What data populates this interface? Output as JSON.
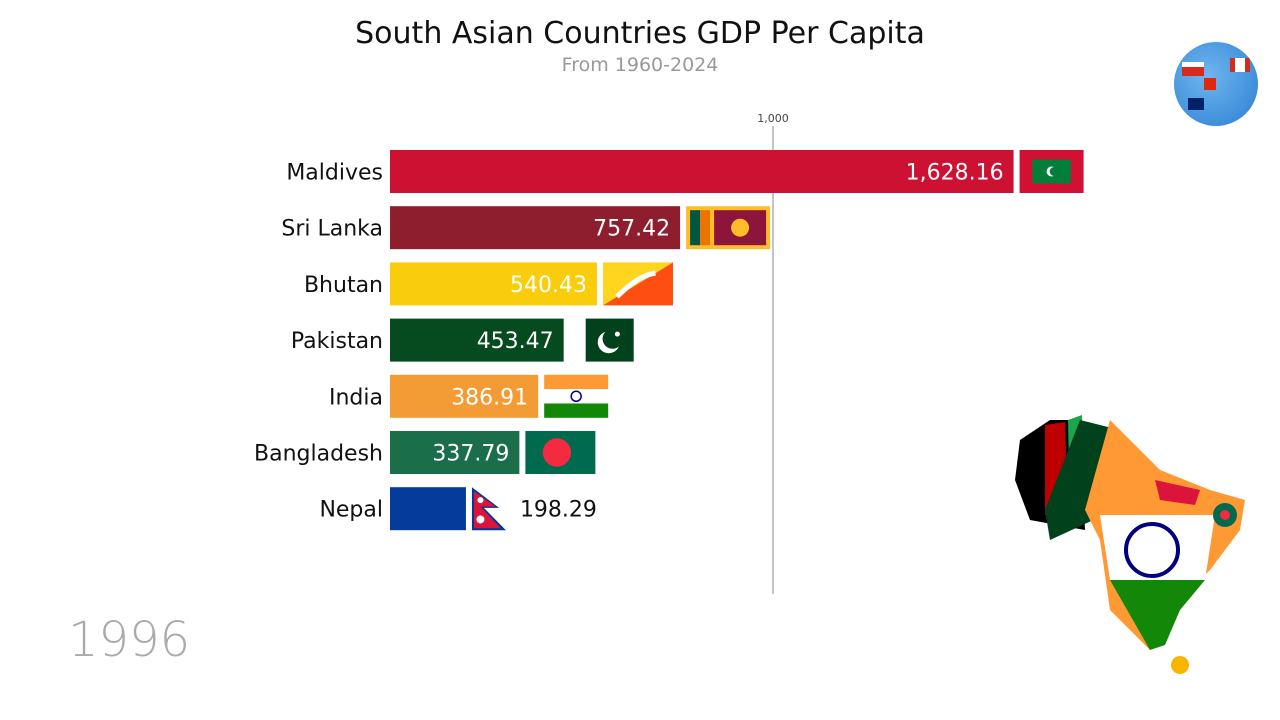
{
  "header": {
    "title": "South Asian Countries GDP Per Capita",
    "subtitle": "From 1960-2024"
  },
  "year_label": "1996",
  "chart_data": {
    "type": "bar",
    "orientation": "horizontal",
    "title": "South Asian Countries GDP Per Capita",
    "subtitle": "From 1960-2024",
    "categories": [
      "Maldives",
      "Sri Lanka",
      "Bhutan",
      "Pakistan",
      "India",
      "Bangladesh",
      "Nepal"
    ],
    "values": [
      1628.16,
      757.42,
      540.43,
      453.47,
      386.91,
      337.79,
      198.29
    ],
    "value_labels": [
      "1,628.16",
      "757.42",
      "540.43",
      "453.47",
      "386.91",
      "337.79",
      "198.29"
    ],
    "colors": [
      "#cc1133",
      "#8e1d2e",
      "#f9cc0c",
      "#064a1f",
      "#f39b34",
      "#1a6e4a",
      "#053b9a"
    ],
    "flags": [
      "maldives-flag",
      "sri-lanka-flag",
      "bhutan-flag",
      "pakistan-flag",
      "india-flag",
      "bangladesh-flag",
      "nepal-flag"
    ],
    "x_ticks": [
      1000
    ],
    "x_tick_labels": [
      "1,000"
    ],
    "xlim": [
      0,
      2300
    ],
    "grid": true,
    "legend": "none"
  }
}
